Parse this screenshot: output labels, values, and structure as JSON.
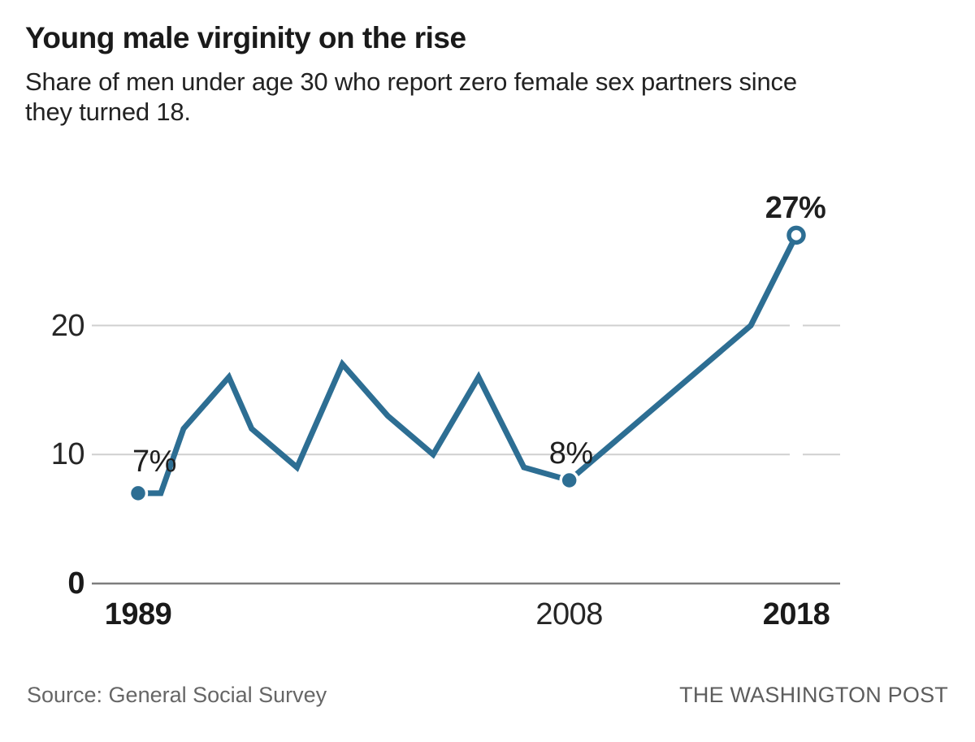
{
  "header": {
    "title": "Young male virginity on the rise",
    "subtitle": "Share of men under age 30 who report zero female sex partners since they turned 18.",
    "subtitle_line1": "Share of men under age 30 who report zero female sex partners since",
    "subtitle_line2": "they turned 18."
  },
  "chart_data": {
    "type": "line",
    "title": "Young male virginity on the rise",
    "subtitle": "Share of men under age 30 who report zero female sex partners since they turned 18.",
    "x": [
      1989,
      1990,
      1991,
      1993,
      1994,
      1996,
      1998,
      2000,
      2002,
      2004,
      2006,
      2008,
      2010,
      2012,
      2014,
      2016,
      2018
    ],
    "values": [
      7,
      7,
      12,
      16,
      12,
      9,
      17,
      13,
      10,
      16,
      9,
      8,
      11,
      14,
      17,
      20,
      27
    ],
    "unit": "percent",
    "ylim": [
      0,
      30
    ],
    "xlim": [
      1989,
      2018
    ],
    "grid": "horizontal",
    "yticks": [
      {
        "value": 0,
        "label": "0"
      },
      {
        "value": 10,
        "label": "10"
      },
      {
        "value": 20,
        "label": "20"
      }
    ],
    "xticks": [
      {
        "year": 1989,
        "label": "1989"
      },
      {
        "year": 2008,
        "label": "2008"
      },
      {
        "year": 2018,
        "label": "2018"
      }
    ],
    "points": [
      {
        "year": 1989,
        "value": 7,
        "label": "7%",
        "marker": "filled"
      },
      {
        "year": 2008,
        "value": 8,
        "label": "8%",
        "marker": "filled"
      },
      {
        "year": 2018,
        "value": 27,
        "label": "27%",
        "marker": "open"
      }
    ],
    "colors": {
      "line": "#2d6e93",
      "gridline": "#cfcfcf",
      "baseline": "#7d7d7d",
      "text": "#1a1a1a"
    }
  },
  "footer": {
    "source": "Source: General Social Survey",
    "credit": "THE WASHINGTON POST"
  }
}
